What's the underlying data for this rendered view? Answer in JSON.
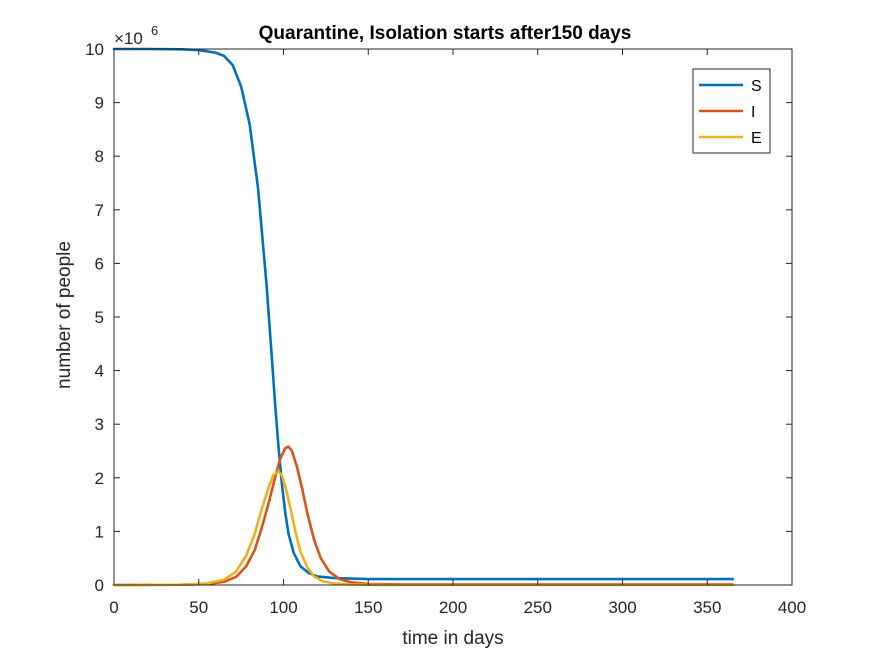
{
  "chart_data": {
    "type": "line",
    "title": "Quarantine, Isolation starts after150   days",
    "xlabel": "time in days",
    "ylabel": "number of people",
    "y_exponent_label": "×10",
    "y_exponent_power": "6",
    "xlim": [
      0,
      400
    ],
    "ylim": [
      0,
      10
    ],
    "y_scale_factor": 1000000,
    "x_ticks": [
      0,
      50,
      100,
      150,
      200,
      250,
      300,
      350,
      400
    ],
    "y_ticks": [
      0,
      1,
      2,
      3,
      4,
      5,
      6,
      7,
      8,
      9,
      10
    ],
    "grid": false,
    "legend_position": "top-right",
    "series": [
      {
        "name": "S",
        "color": "#0072BD",
        "points": [
          [
            0,
            10
          ],
          [
            20,
            10
          ],
          [
            40,
            9.995
          ],
          [
            50,
            9.98
          ],
          [
            60,
            9.93
          ],
          [
            65,
            9.87
          ],
          [
            70,
            9.7
          ],
          [
            75,
            9.3
          ],
          [
            80,
            8.6
          ],
          [
            85,
            7.4
          ],
          [
            90,
            5.6
          ],
          [
            93,
            4.3
          ],
          [
            95,
            3.4
          ],
          [
            97,
            2.6
          ],
          [
            99,
            1.9
          ],
          [
            101,
            1.35
          ],
          [
            103,
            0.95
          ],
          [
            106,
            0.6
          ],
          [
            110,
            0.35
          ],
          [
            115,
            0.22
          ],
          [
            120,
            0.16
          ],
          [
            130,
            0.13
          ],
          [
            140,
            0.12
          ],
          [
            150,
            0.11
          ],
          [
            200,
            0.11
          ],
          [
            250,
            0.11
          ],
          [
            300,
            0.11
          ],
          [
            365,
            0.11
          ]
        ]
      },
      {
        "name": "I",
        "color": "#D95319",
        "points": [
          [
            0,
            0
          ],
          [
            40,
            0.005
          ],
          [
            55,
            0.02
          ],
          [
            65,
            0.06
          ],
          [
            72,
            0.15
          ],
          [
            78,
            0.35
          ],
          [
            83,
            0.65
          ],
          [
            87,
            1.05
          ],
          [
            91,
            1.5
          ],
          [
            95,
            2.0
          ],
          [
            98,
            2.35
          ],
          [
            101,
            2.55
          ],
          [
            103,
            2.58
          ],
          [
            105,
            2.5
          ],
          [
            108,
            2.2
          ],
          [
            111,
            1.8
          ],
          [
            114,
            1.35
          ],
          [
            118,
            0.85
          ],
          [
            122,
            0.5
          ],
          [
            127,
            0.25
          ],
          [
            133,
            0.11
          ],
          [
            140,
            0.05
          ],
          [
            150,
            0.02
          ],
          [
            170,
            0.01
          ],
          [
            200,
            0.01
          ],
          [
            365,
            0.01
          ]
        ]
      },
      {
        "name": "E",
        "color": "#EDB120",
        "points": [
          [
            0,
            0
          ],
          [
            40,
            0.005
          ],
          [
            55,
            0.03
          ],
          [
            65,
            0.1
          ],
          [
            72,
            0.25
          ],
          [
            78,
            0.55
          ],
          [
            83,
            0.95
          ],
          [
            87,
            1.4
          ],
          [
            91,
            1.8
          ],
          [
            94,
            2.05
          ],
          [
            97,
            2.12
          ],
          [
            99,
            2.05
          ],
          [
            101,
            1.85
          ],
          [
            104,
            1.45
          ],
          [
            107,
            1.0
          ],
          [
            110,
            0.62
          ],
          [
            114,
            0.33
          ],
          [
            118,
            0.16
          ],
          [
            123,
            0.07
          ],
          [
            130,
            0.03
          ],
          [
            140,
            0.01
          ],
          [
            160,
            0.0
          ],
          [
            200,
            0.0
          ],
          [
            365,
            0.0
          ]
        ]
      }
    ]
  }
}
